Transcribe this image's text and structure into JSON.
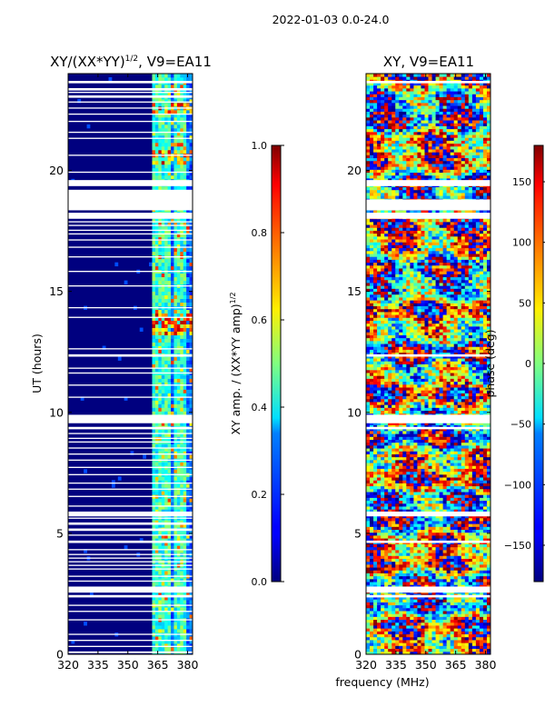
{
  "suptitle": "2022-01-03 0.0-24.0",
  "shared_xlabel": "frequency (MHz)",
  "colors": {
    "missing_data": "#ffffff",
    "background": "#00007f"
  },
  "chart_data": [
    {
      "type": "heatmap",
      "title_main": "XY/(XX*YY)",
      "title_exp": "1/2",
      "title_suffix": ", V9=EA11",
      "xlabel": "",
      "ylabel": "UT (hours)",
      "xlim": [
        320,
        382.5
      ],
      "ylim": [
        0,
        24
      ],
      "xticks": [
        320,
        335,
        350,
        365,
        380
      ],
      "yticks": [
        0,
        5,
        10,
        15,
        20
      ],
      "colormap": "jet",
      "colorbar": {
        "label_main": "XY amp. / (XX*YY amp)",
        "label_exp": "1/2",
        "range": [
          0.0,
          1.0
        ],
        "ticks": [
          "0.0",
          "0.2",
          "0.4",
          "0.6",
          "0.8",
          "1.0"
        ],
        "tick_values": [
          0.0,
          0.2,
          0.4,
          0.6,
          0.8,
          1.0
        ]
      },
      "data_gaps_hours": [
        [
          0.05,
          0.12
        ],
        [
          0.3,
          0.35
        ],
        [
          0.55,
          0.6
        ],
        [
          0.8,
          0.85
        ],
        [
          1.4,
          1.45
        ],
        [
          1.75,
          1.8
        ],
        [
          2.0,
          2.05
        ],
        [
          2.35,
          2.45
        ],
        [
          2.55,
          2.8
        ],
        [
          3.0,
          3.05
        ],
        [
          3.2,
          3.25
        ],
        [
          3.5,
          3.55
        ],
        [
          3.65,
          3.7
        ],
        [
          3.8,
          3.85
        ],
        [
          3.95,
          4.0
        ],
        [
          4.1,
          4.15
        ],
        [
          4.3,
          4.35
        ],
        [
          4.6,
          4.7
        ],
        [
          4.9,
          4.95
        ],
        [
          5.1,
          5.2
        ],
        [
          5.35,
          5.45
        ],
        [
          5.6,
          5.65
        ],
        [
          5.7,
          5.9
        ],
        [
          6.1,
          6.15
        ],
        [
          6.5,
          6.55
        ],
        [
          6.8,
          6.85
        ],
        [
          7.05,
          7.1
        ],
        [
          7.4,
          7.45
        ],
        [
          7.7,
          7.75
        ],
        [
          8.0,
          8.05
        ],
        [
          8.25,
          8.3
        ],
        [
          8.5,
          8.55
        ],
        [
          8.75,
          8.8
        ],
        [
          8.9,
          8.95
        ],
        [
          9.1,
          9.15
        ],
        [
          9.3,
          9.4
        ],
        [
          9.55,
          9.9
        ],
        [
          10.6,
          10.65
        ],
        [
          11.1,
          11.15
        ],
        [
          11.6,
          11.65
        ],
        [
          11.8,
          11.85
        ],
        [
          12.3,
          12.4
        ],
        [
          12.6,
          12.65
        ],
        [
          13.9,
          13.95
        ],
        [
          14.3,
          14.35
        ],
        [
          15.2,
          15.25
        ],
        [
          15.8,
          15.85
        ],
        [
          16.4,
          16.45
        ],
        [
          16.8,
          16.85
        ],
        [
          17.1,
          17.15
        ],
        [
          17.35,
          17.4
        ],
        [
          17.5,
          17.55
        ],
        [
          17.7,
          17.75
        ],
        [
          17.85,
          17.9
        ],
        [
          18.0,
          18.25
        ],
        [
          18.35,
          19.2
        ],
        [
          19.35,
          19.6
        ],
        [
          19.9,
          19.95
        ],
        [
          20.6,
          20.65
        ],
        [
          21.3,
          21.35
        ],
        [
          21.55,
          21.6
        ],
        [
          22.0,
          22.05
        ],
        [
          22.3,
          22.35
        ],
        [
          22.55,
          22.6
        ],
        [
          22.8,
          22.85
        ],
        [
          23.0,
          23.1
        ],
        [
          23.2,
          23.25
        ],
        [
          23.3,
          23.4
        ],
        [
          23.6,
          23.7
        ]
      ],
      "bright_band_mhz": [
        [
          361,
          367
        ],
        [
          368,
          370
        ],
        [
          373,
          375
        ],
        [
          376,
          379
        ]
      ],
      "amp_hotspots_hours": [
        [
          13.1,
          14.0
        ],
        [
          22.3,
          22.7
        ],
        [
          20.2,
          20.8
        ]
      ]
    },
    {
      "type": "heatmap",
      "title": "XY, V9=EA11",
      "xlabel": "",
      "ylabel": "",
      "xlim": [
        320,
        382.5
      ],
      "ylim": [
        0,
        24
      ],
      "xticks": [
        320,
        335,
        350,
        365,
        380
      ],
      "yticks": [
        0,
        5,
        10,
        15,
        20
      ],
      "colormap": "jet",
      "colorbar": {
        "label": "phase (deg)",
        "range": [
          -180,
          180
        ],
        "ticks": [
          "−150",
          "−100",
          "−50",
          "0",
          "50",
          "100",
          "150"
        ],
        "tick_values": [
          -150,
          -100,
          -50,
          0,
          50,
          100,
          150
        ]
      },
      "data_gaps_hours": [
        [
          2.35,
          2.45
        ],
        [
          2.55,
          2.8
        ],
        [
          4.6,
          4.7
        ],
        [
          5.7,
          5.9
        ],
        [
          9.3,
          9.4
        ],
        [
          9.55,
          9.9
        ],
        [
          12.3,
          12.4
        ],
        [
          18.0,
          18.25
        ],
        [
          18.35,
          18.8
        ],
        [
          19.35,
          19.6
        ],
        [
          23.6,
          23.7
        ]
      ]
    }
  ]
}
